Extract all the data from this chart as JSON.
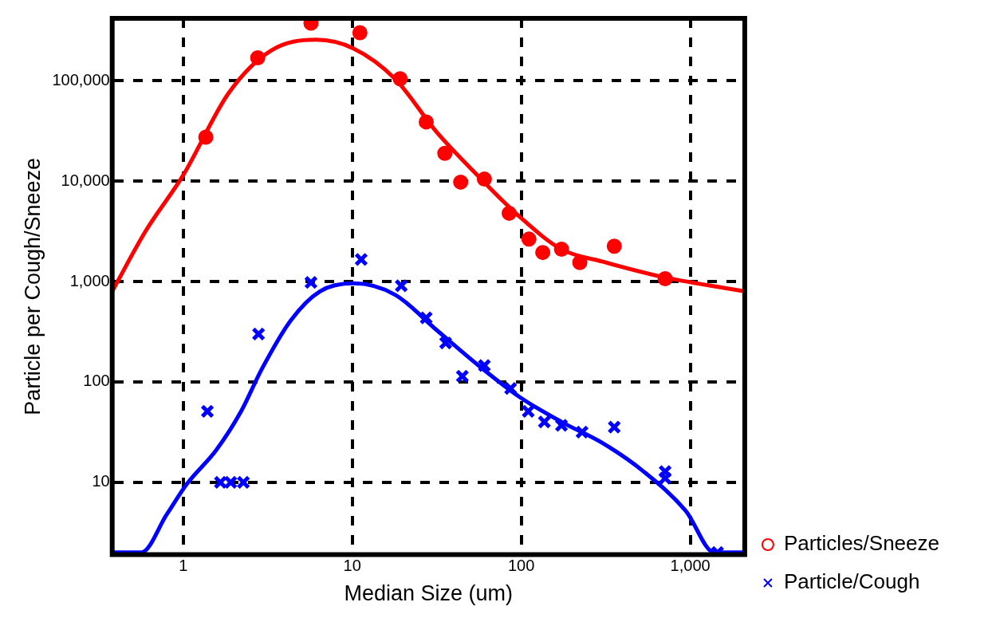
{
  "chart_data": {
    "type": "scatter",
    "xlabel": "Median Size (um)",
    "ylabel": "Particle per Cough/Sneeze",
    "log": "xy",
    "grid": true,
    "legend": "right",
    "xlim": [
      0.38,
      2100
    ],
    "ylim": [
      1.9,
      420000
    ],
    "xticks": [
      1,
      10,
      100,
      {
        "value": 1000,
        "label": "1,000"
      }
    ],
    "yticks": [
      10,
      100,
      {
        "value": 1000,
        "label": "1,000"
      },
      {
        "value": 10000,
        "label": "10,000"
      },
      {
        "value": 100000,
        "label": "100,000"
      }
    ],
    "series": [
      {
        "name": "Particles/Sneeze",
        "marker": "circle",
        "color": "#ff0000",
        "x": [
          1.36,
          2.76,
          5.7,
          11.1,
          19.2,
          27.4,
          35.3,
          43.8,
          60.5,
          84.8,
          111,
          134,
          173,
          222,
          355,
          710
        ],
        "values": [
          27500,
          170000,
          376000,
          302000,
          105000,
          39000,
          19000,
          9800,
          10500,
          4800,
          2650,
          1950,
          2100,
          1550,
          2250,
          1070
        ]
      },
      {
        "name": "Particle/Cough",
        "marker": "cross",
        "color": "#0000ff",
        "x": [
          1.39,
          1.66,
          1.91,
          2.27,
          2.79,
          5.7,
          11.3,
          19.5,
          27.4,
          35.7,
          44.8,
          60.5,
          86.5,
          110,
          137,
          173,
          229,
          355,
          710,
          710,
          1450
        ],
        "values": [
          51,
          10,
          10,
          10,
          300,
          980,
          1660,
          910,
          435,
          245,
          114,
          146,
          86,
          51,
          40,
          37,
          31.6,
          35.5,
          12.8,
          11,
          2
        ]
      },
      {
        "type": "line",
        "color": "#ff0000",
        "x": [
          0.38,
          0.6,
          1,
          1.86,
          3.3,
          6.1,
          10.2,
          17.9,
          31.5,
          55.8,
          97.5,
          173,
          304,
          710,
          2090
        ],
        "values": [
          800,
          3200,
          11500,
          76000,
          200000,
          257000,
          210000,
          105000,
          31000,
          11200,
          4450,
          2100,
          1580,
          1100,
          800
        ]
      },
      {
        "type": "line",
        "color": "#0000ff",
        "x": [
          0.38,
          0.565,
          0.8,
          1.05,
          1.57,
          2.2,
          2.92,
          4.35,
          6.45,
          10.2,
          17.9,
          31.5,
          55.8,
          97.5,
          173,
          304,
          530,
          940,
          1390,
          2090
        ],
        "values": [
          2,
          2,
          4.8,
          9.6,
          21,
          51,
          135,
          415,
          800,
          960,
          740,
          330,
          146,
          71,
          40,
          24.5,
          12.8,
          5.2,
          2,
          2
        ]
      }
    ]
  }
}
